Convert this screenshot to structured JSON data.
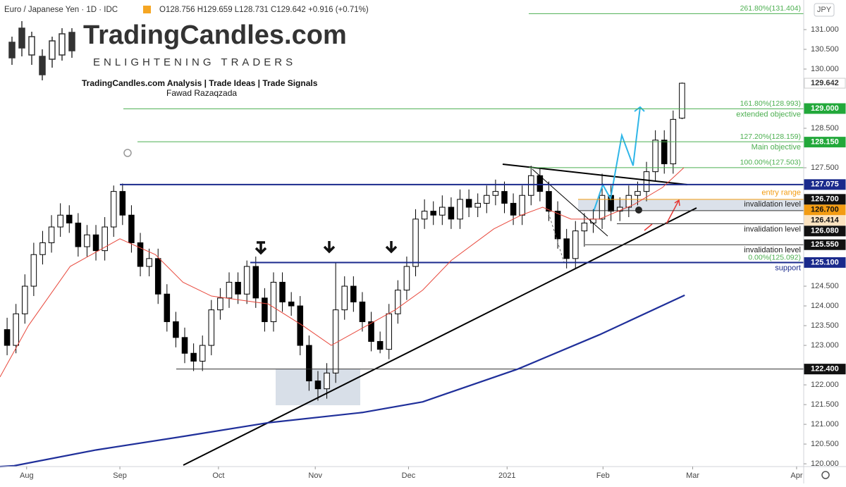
{
  "chart_data": {
    "type": "candlestick",
    "title": "Euro / Japanese Yen · 1D · IDC",
    "subtitle": "O128.756 H129.659 L128.731 C129.642 +0.916 (+0.71%)",
    "currency": "JPY",
    "brand": "TradingCandles.com",
    "tagline": "ENLIGHTENING TRADERS",
    "credit_line": "TradingCandles.com  Analysis | Trade Ideas | Trade Signals",
    "author": "Fawad Razaqzada",
    "xlim": [
      -0.8,
      89.7
    ],
    "ylim": [
      119.93,
      131.75
    ],
    "xticks": [
      {
        "value": 2.2,
        "label": "Aug"
      },
      {
        "value": 12.7,
        "label": "Sep"
      },
      {
        "value": 23.8,
        "label": "Oct"
      },
      {
        "value": 34.7,
        "label": "Nov"
      },
      {
        "value": 45.2,
        "label": "Dec"
      },
      {
        "value": 56.3,
        "label": "2021"
      },
      {
        "value": 67.1,
        "label": "Feb"
      },
      {
        "value": 77.2,
        "label": "Mar"
      },
      {
        "value": 88.9,
        "label": "Apr"
      }
    ],
    "yticks": [
      {
        "value": 131,
        "label": "131.000"
      },
      {
        "value": 130.5,
        "label": "130.500"
      },
      {
        "value": 130,
        "label": "130.000"
      },
      {
        "value": 128.5,
        "label": "128.500"
      },
      {
        "value": 127.5,
        "label": "127.500"
      },
      {
        "value": 124.5,
        "label": "124.500"
      },
      {
        "value": 124,
        "label": "124.000"
      },
      {
        "value": 123.5,
        "label": "123.500"
      },
      {
        "value": 123,
        "label": "123.000"
      },
      {
        "value": 122,
        "label": "122.000"
      },
      {
        "value": 121.5,
        "label": "121.500"
      },
      {
        "value": 121,
        "label": "121.000"
      },
      {
        "value": 120.5,
        "label": "120.500"
      },
      {
        "value": 120,
        "label": "120.000"
      }
    ],
    "up_color": "#ffffff",
    "down_color": "#000000",
    "ohlc": [
      [
        123.4,
        123.7,
        122.75,
        123.0
      ],
      [
        123.0,
        124.05,
        122.8,
        123.8
      ],
      [
        123.8,
        124.8,
        123.55,
        124.5
      ],
      [
        124.5,
        125.6,
        124.25,
        125.3
      ],
      [
        125.3,
        125.9,
        125.05,
        125.6
      ],
      [
        125.6,
        126.3,
        125.35,
        126.0
      ],
      [
        126.0,
        126.6,
        125.75,
        126.3
      ],
      [
        126.3,
        126.55,
        125.85,
        126.1
      ],
      [
        126.1,
        126.35,
        125.25,
        125.5
      ],
      [
        125.5,
        126.05,
        125.25,
        125.8
      ],
      [
        125.8,
        126.05,
        125.15,
        125.4
      ],
      [
        125.4,
        126.25,
        125.15,
        126.0
      ],
      [
        126.0,
        127.05,
        125.75,
        126.9
      ],
      [
        126.9,
        127.1,
        126.05,
        126.3
      ],
      [
        126.3,
        126.55,
        125.35,
        125.6
      ],
      [
        125.6,
        125.85,
        124.75,
        125.0
      ],
      [
        125.0,
        125.45,
        124.75,
        125.2
      ],
      [
        125.2,
        125.45,
        124.05,
        124.3
      ],
      [
        124.3,
        124.55,
        123.35,
        123.6
      ],
      [
        123.6,
        123.85,
        122.95,
        123.2
      ],
      [
        123.2,
        123.45,
        122.55,
        122.8
      ],
      [
        122.8,
        123.05,
        122.35,
        122.6
      ],
      [
        122.6,
        123.25,
        122.35,
        123.0
      ],
      [
        123.0,
        124.15,
        122.75,
        123.9
      ],
      [
        123.9,
        124.45,
        123.65,
        124.2
      ],
      [
        124.2,
        124.85,
        123.95,
        124.6
      ],
      [
        124.6,
        124.85,
        124.05,
        124.3
      ],
      [
        124.3,
        125.15,
        124.05,
        125.0
      ],
      [
        125.0,
        125.25,
        123.95,
        124.2
      ],
      [
        124.2,
        124.45,
        123.35,
        123.6
      ],
      [
        123.6,
        124.85,
        123.35,
        124.6
      ],
      [
        124.6,
        124.85,
        123.85,
        124.1
      ],
      [
        124.1,
        124.35,
        123.75,
        124.0
      ],
      [
        124.0,
        124.25,
        122.75,
        123.0
      ],
      [
        123.0,
        123.25,
        121.85,
        122.1
      ],
      [
        122.1,
        122.35,
        121.6,
        121.9
      ],
      [
        121.9,
        122.55,
        121.65,
        122.3
      ],
      [
        122.3,
        125.1,
        122.05,
        123.9
      ],
      [
        123.9,
        124.75,
        123.65,
        124.5
      ],
      [
        124.5,
        124.75,
        123.85,
        124.1
      ],
      [
        124.1,
        124.35,
        123.35,
        123.6
      ],
      [
        123.6,
        123.85,
        122.85,
        123.1
      ],
      [
        123.1,
        123.35,
        122.8,
        122.9
      ],
      [
        122.9,
        124.05,
        122.65,
        123.8
      ],
      [
        123.8,
        124.65,
        123.55,
        124.4
      ],
      [
        124.4,
        125.25,
        124.15,
        125.0
      ],
      [
        125.0,
        126.45,
        124.75,
        126.2
      ],
      [
        126.2,
        126.7,
        125.95,
        126.4
      ],
      [
        126.4,
        126.65,
        126.05,
        126.3
      ],
      [
        126.3,
        126.8,
        126.05,
        126.5
      ],
      [
        126.5,
        126.75,
        125.95,
        126.2
      ],
      [
        126.2,
        126.95,
        125.95,
        126.7
      ],
      [
        126.7,
        126.95,
        126.25,
        126.5
      ],
      [
        126.5,
        126.85,
        126.25,
        126.6
      ],
      [
        126.6,
        127.05,
        126.35,
        126.8
      ],
      [
        126.8,
        127.2,
        126.55,
        126.9
      ],
      [
        126.9,
        127.15,
        126.35,
        126.6
      ],
      [
        126.6,
        126.85,
        126.05,
        126.3
      ],
      [
        126.3,
        127.05,
        126.05,
        126.8
      ],
      [
        126.8,
        127.55,
        126.55,
        127.3
      ],
      [
        127.3,
        127.5,
        126.65,
        126.9
      ],
      [
        126.9,
        127.15,
        126.15,
        126.4
      ],
      [
        126.4,
        126.65,
        125.45,
        125.7
      ],
      [
        125.7,
        125.95,
        124.95,
        125.2
      ],
      [
        125.2,
        126.15,
        124.95,
        125.9
      ],
      [
        125.9,
        126.35,
        125.5,
        126.1
      ],
      [
        126.1,
        126.45,
        125.85,
        126.2
      ],
      [
        126.2,
        127.35,
        125.95,
        126.8
      ],
      [
        126.8,
        127.05,
        126.15,
        126.4
      ],
      [
        126.4,
        126.75,
        126.15,
        126.5
      ],
      [
        126.5,
        127.05,
        126.25,
        126.8
      ],
      [
        126.8,
        127.15,
        126.55,
        126.9
      ],
      [
        126.9,
        127.65,
        126.65,
        127.4
      ],
      [
        127.4,
        128.45,
        127.15,
        128.2
      ],
      [
        128.2,
        128.45,
        127.35,
        127.6
      ],
      [
        127.6,
        128.95,
        127.35,
        128.726
      ],
      [
        128.756,
        129.659,
        128.731,
        129.642
      ]
    ],
    "lines": [
      {
        "color": "#e8483c",
        "x": [
          -0.8,
          2.4,
          7.1,
          12.7,
          16.7,
          19.8,
          23.0,
          29.4,
          33.3,
          36.5,
          40.5,
          43.7,
          46.8,
          50.0,
          54.8,
          57.9,
          60.3,
          63.5,
          66.7,
          70.6,
          73.8,
          76.2
        ],
        "values": [
          122.2,
          123.5,
          125.0,
          125.7,
          125.3,
          124.6,
          124.25,
          124.05,
          123.5,
          123.0,
          123.5,
          123.9,
          124.4,
          125.15,
          125.95,
          126.3,
          126.5,
          126.2,
          126.2,
          126.57,
          127.0,
          127.5
        ]
      },
      {
        "color": "#1f2f9a",
        "x": [
          -0.8,
          0.8,
          10,
          20,
          29.4,
          40,
          46.8,
          57.5,
          66.7,
          76.3
        ],
        "values": [
          119.93,
          119.95,
          120.35,
          120.7,
          121.04,
          121.3,
          121.57,
          122.4,
          123.27,
          124.27
        ]
      }
    ],
    "levels": [
      {
        "value": 131.404,
        "color": "#4caf50",
        "label": "261.80%(131.404)"
      },
      {
        "value": 128.993,
        "color": "#4caf50",
        "label": "161.80%(128.993)",
        "note": "extended objective",
        "note_side": "below"
      },
      {
        "value": 128.159,
        "color": "#4caf50",
        "label": "127.20%(128.159)",
        "note": "Main objective",
        "note_side": "below"
      },
      {
        "value": 127.503,
        "color": "#4caf50",
        "label": "100.00%(127.503)"
      },
      {
        "value": 127.075,
        "color": "#1a2a8c"
      },
      {
        "value": 126.7,
        "color": "#f39c12",
        "note": "entry range",
        "note_side": "above"
      },
      {
        "value": 126.414,
        "color": "#333333",
        "note": "invalidation level",
        "note_side": "above"
      },
      {
        "value": 126.08,
        "color": "#333333",
        "note": "invalidation level",
        "note_side": "below"
      },
      {
        "value": 125.55,
        "color": "#333333",
        "note": "invalidation level",
        "note_side": "below"
      },
      {
        "value": 125.092,
        "color": "#4caf50",
        "label": "0.00%(125.092)"
      },
      {
        "value": 125.1,
        "color": "#1a2a8c",
        "note": "support",
        "note_side": "below"
      },
      {
        "value": 122.4,
        "color": "#333333"
      }
    ],
    "price_badges": [
      {
        "value": 129.642,
        "label": "129.642",
        "bg": "#ffffff",
        "fg": "#333333"
      },
      {
        "value": 129.0,
        "label": "129.000",
        "bg": "#22a83a",
        "fg": "#ffffff"
      },
      {
        "value": 128.15,
        "label": "128.150",
        "bg": "#22a83a",
        "fg": "#ffffff"
      },
      {
        "value": 127.075,
        "label": "127.075",
        "bg": "#1a2a8c",
        "fg": "#ffffff"
      },
      {
        "value": 126.7,
        "label": "126.700",
        "bg": "#111111",
        "fg": "#ffffff"
      },
      {
        "value": 126.7,
        "label": "126.700",
        "bg": "#f39c12",
        "fg": "#111111"
      },
      {
        "value": 126.414,
        "label": "126.414",
        "bg": "#fbe3c0",
        "fg": "#111111"
      },
      {
        "value": 126.08,
        "label": "126.080",
        "bg": "#111111",
        "fg": "#ffffff"
      },
      {
        "value": 125.55,
        "label": "125.550",
        "bg": "#111111",
        "fg": "#ffffff"
      },
      {
        "value": 125.1,
        "label": "125.100",
        "bg": "#1a2a8c",
        "fg": "#ffffff"
      },
      {
        "value": 122.4,
        "label": "122.400",
        "bg": "#111111",
        "fg": "#ffffff"
      }
    ]
  }
}
